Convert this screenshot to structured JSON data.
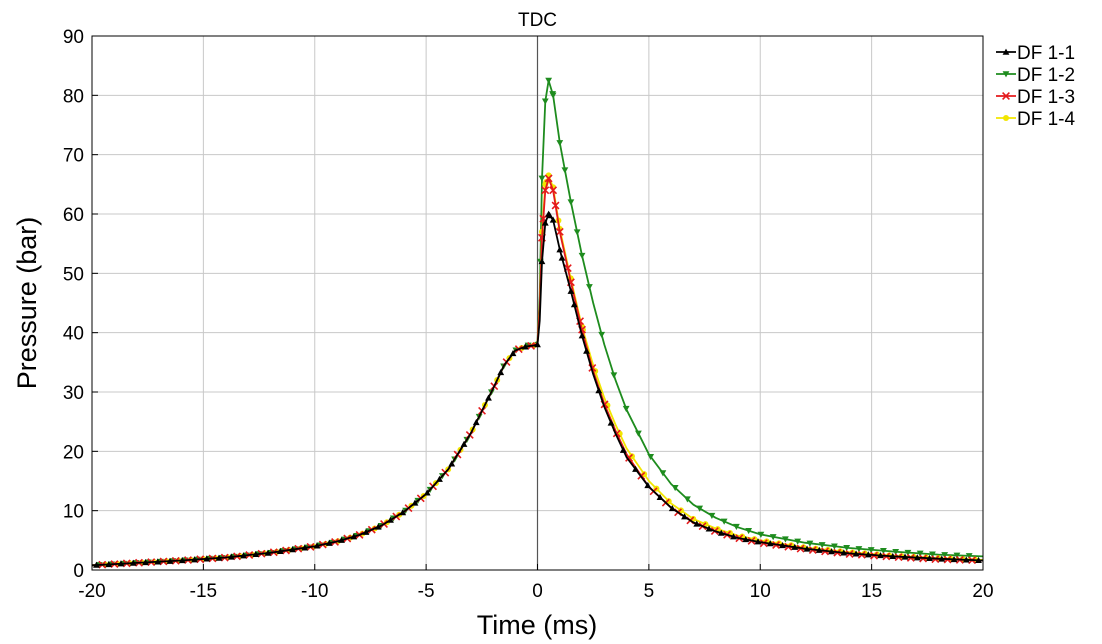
{
  "chart_data": {
    "type": "line",
    "title": "",
    "xlabel": "Time (ms)",
    "ylabel": "Pressure (bar)",
    "xlim": [
      -20,
      20
    ],
    "ylim": [
      0,
      90
    ],
    "xticks": [
      -20,
      -15,
      -10,
      -5,
      0,
      5,
      10,
      15,
      20
    ],
    "yticks": [
      0,
      10,
      20,
      30,
      40,
      50,
      60,
      70,
      80,
      90
    ],
    "grid": true,
    "legend_position": "right",
    "annotations": [
      {
        "text": "TDC",
        "x": 0
      }
    ],
    "series": [
      {
        "name": "DF 1-1",
        "color": "#000000",
        "marker": "triangle-up",
        "x": [
          -20,
          -18,
          -16,
          -14,
          -12,
          -10,
          -9,
          -8,
          -7,
          -6,
          -5,
          -4,
          -3,
          -2,
          -1.5,
          -1,
          -0.5,
          -0.2,
          0,
          0.1,
          0.2,
          0.35,
          0.5,
          0.7,
          1,
          1.5,
          2,
          2.5,
          3,
          3.5,
          4,
          5,
          6,
          7,
          8,
          9,
          10,
          12,
          14,
          16,
          18,
          20
        ],
        "y": [
          0.8,
          1.2,
          1.6,
          2.1,
          2.9,
          4.0,
          4.8,
          5.9,
          7.5,
          9.8,
          12.8,
          17.0,
          23.0,
          30.5,
          34.5,
          37.0,
          37.7,
          37.8,
          38.0,
          42.0,
          52.0,
          58.5,
          60.0,
          59.0,
          54.0,
          47.0,
          39.5,
          33.0,
          27.5,
          23.0,
          19.0,
          14.0,
          10.5,
          8.0,
          6.5,
          5.4,
          4.7,
          3.6,
          2.8,
          2.3,
          1.9,
          1.6
        ]
      },
      {
        "name": "DF 1-2",
        "color": "#1e8c1e",
        "marker": "triangle-down",
        "x": [
          -20,
          -18,
          -16,
          -14,
          -12,
          -10,
          -9,
          -8,
          -7,
          -6,
          -5,
          -4,
          -3,
          -2,
          -1.5,
          -1,
          -0.5,
          -0.2,
          0,
          0.1,
          0.2,
          0.35,
          0.5,
          0.7,
          1,
          1.5,
          2,
          2.5,
          3,
          3.5,
          4,
          5,
          6,
          7,
          8,
          9,
          10,
          12,
          14,
          16,
          18,
          20
        ],
        "y": [
          0.8,
          1.2,
          1.6,
          2.1,
          2.9,
          4.0,
          4.8,
          5.9,
          7.5,
          9.8,
          12.8,
          17.0,
          23.0,
          30.5,
          34.5,
          37.0,
          37.8,
          38.0,
          38.5,
          46.0,
          66.0,
          79.0,
          82.5,
          80.0,
          72.0,
          62.0,
          53.0,
          45.0,
          38.0,
          32.0,
          27.0,
          19.5,
          14.5,
          11.0,
          8.8,
          7.2,
          6.0,
          4.6,
          3.7,
          3.1,
          2.6,
          2.3
        ]
      },
      {
        "name": "DF 1-3",
        "color": "#e41a1c",
        "marker": "x",
        "x": [
          -20,
          -18,
          -16,
          -14,
          -12,
          -10,
          -9,
          -8,
          -7,
          -6,
          -5,
          -4,
          -3,
          -2,
          -1.5,
          -1,
          -0.5,
          -0.2,
          0,
          0.1,
          0.2,
          0.35,
          0.5,
          0.7,
          1,
          1.5,
          2,
          2.5,
          3,
          3.5,
          4,
          5,
          6,
          7,
          8,
          9,
          10,
          12,
          14,
          16,
          18,
          20
        ],
        "y": [
          0.8,
          1.2,
          1.6,
          2.1,
          2.9,
          4.0,
          4.8,
          5.9,
          7.5,
          9.8,
          12.8,
          17.0,
          23.0,
          30.5,
          34.5,
          37.0,
          37.7,
          37.8,
          38.2,
          44.0,
          56.0,
          64.0,
          66.0,
          64.0,
          57.0,
          48.5,
          40.5,
          33.5,
          28.0,
          23.5,
          19.5,
          14.0,
          10.5,
          8.0,
          6.5,
          5.4,
          4.6,
          3.5,
          2.7,
          2.2,
          1.8,
          1.6
        ]
      },
      {
        "name": "DF 1-4",
        "color": "#f2e600",
        "marker": "circle",
        "x": [
          -20,
          -18,
          -16,
          -14,
          -12,
          -10,
          -9,
          -8,
          -7,
          -6,
          -5,
          -4,
          -3,
          -2,
          -1.5,
          -1,
          -0.5,
          -0.2,
          0,
          0.1,
          0.2,
          0.35,
          0.5,
          0.7,
          1,
          1.5,
          2,
          2.5,
          3,
          3.5,
          4,
          5,
          6,
          7,
          8,
          9,
          10,
          12,
          14,
          16,
          18,
          20
        ],
        "y": [
          0.8,
          1.2,
          1.6,
          2.1,
          2.9,
          4.0,
          4.8,
          5.9,
          7.5,
          9.8,
          12.8,
          17.0,
          23.0,
          30.5,
          34.5,
          37.0,
          37.7,
          37.8,
          38.1,
          44.5,
          57.0,
          65.0,
          66.5,
          64.5,
          57.5,
          49.0,
          41.0,
          34.5,
          29.0,
          24.5,
          20.5,
          15.0,
          11.2,
          8.6,
          7.0,
          5.8,
          5.0,
          3.8,
          3.0,
          2.4,
          2.0,
          1.7
        ]
      }
    ]
  }
}
